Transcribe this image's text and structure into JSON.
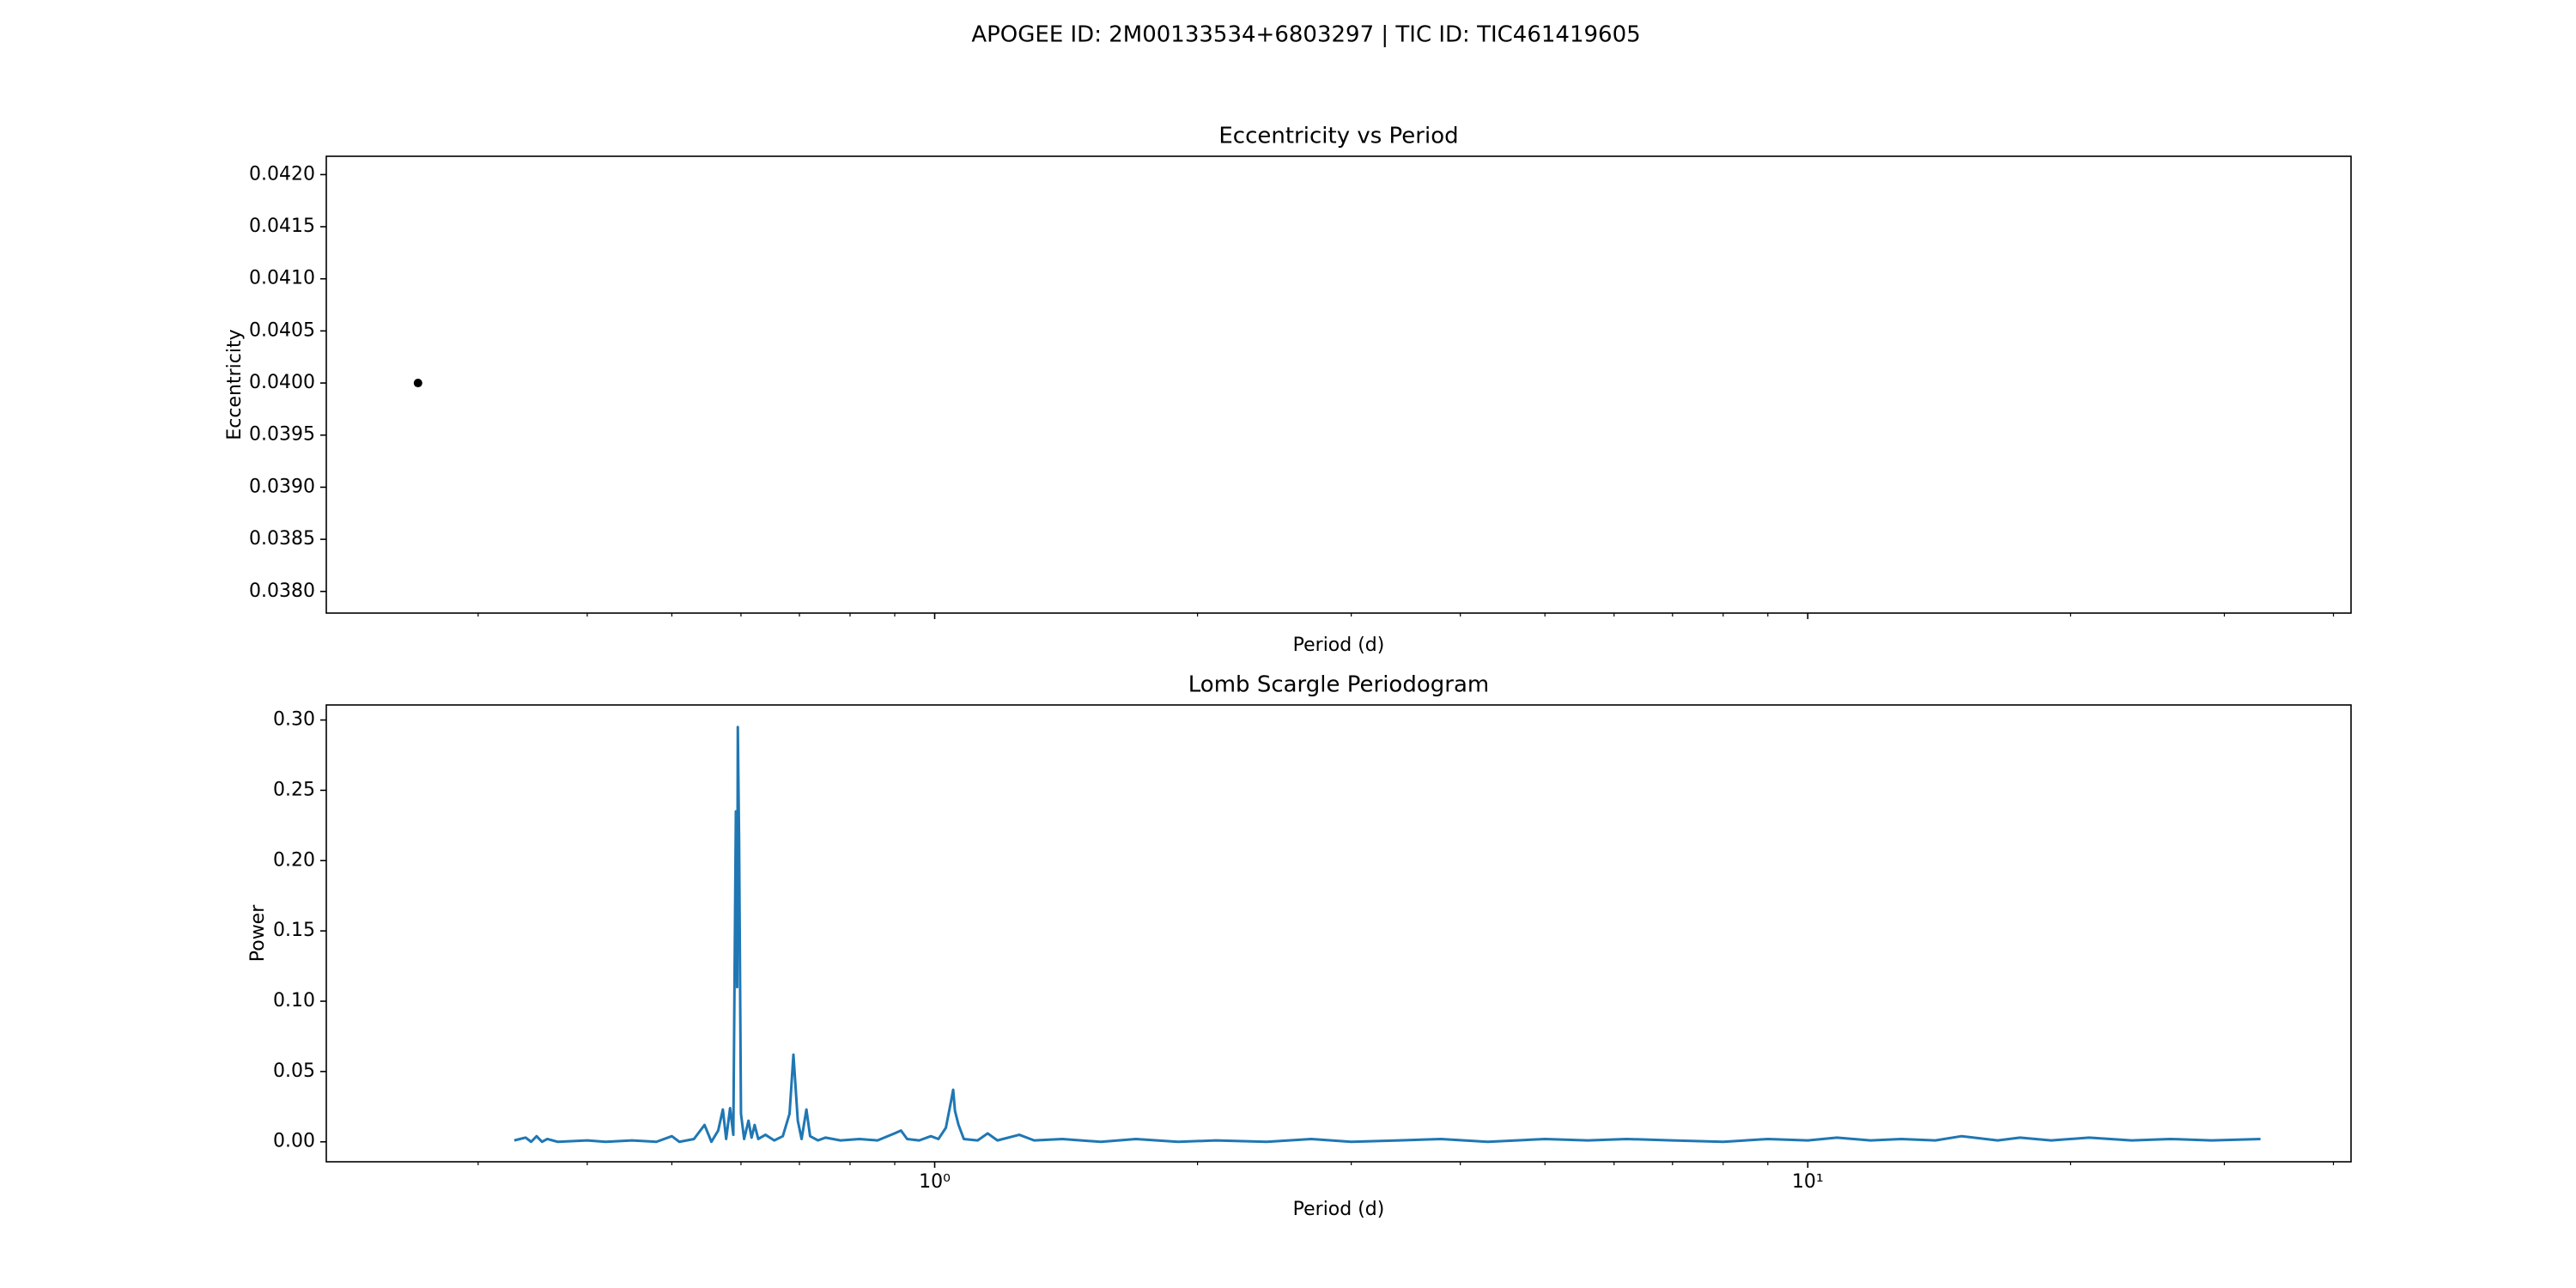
{
  "title": "APOGEE ID: 2M00133534+6803297 | TIC ID: TIC461419605",
  "chart_data": [
    {
      "type": "scatter",
      "title": "Eccentricity vs Period",
      "x_label": "Period (d)",
      "y_label": "Eccentricity",
      "x": [
        0.256
      ],
      "values": [
        0.04
      ],
      "color": "#000000",
      "xscale": "log",
      "xlim": [
        0.201,
        41.9
      ],
      "ylim": [
        0.037792,
        0.042176
      ],
      "xticks": [
        1,
        10
      ],
      "xminorticks": [
        0.3,
        0.4,
        0.5,
        0.6,
        0.7,
        0.8,
        0.9,
        2,
        3,
        4,
        5,
        6,
        7,
        8,
        9,
        20,
        30,
        40
      ],
      "yticks": [
        {
          "value": 0.038,
          "label": "0.0380"
        },
        {
          "value": 0.0385,
          "label": "0.0385"
        },
        {
          "value": 0.039,
          "label": "0.0390"
        },
        {
          "value": 0.0395,
          "label": "0.0395"
        },
        {
          "value": 0.04,
          "label": "0.0400"
        },
        {
          "value": 0.0405,
          "label": "0.0405"
        },
        {
          "value": 0.041,
          "label": "0.0410"
        },
        {
          "value": 0.0415,
          "label": "0.0415"
        },
        {
          "value": 0.042,
          "label": "0.0420"
        }
      ]
    },
    {
      "type": "line",
      "title": "Lomb Scargle Periodogram",
      "x_label": "Period (d)",
      "y_label": "Power",
      "color": "#1f77b4",
      "x": [
        0.33,
        0.34,
        0.345,
        0.35,
        0.355,
        0.36,
        0.37,
        0.4,
        0.42,
        0.45,
        0.48,
        0.5,
        0.51,
        0.53,
        0.545,
        0.555,
        0.565,
        0.572,
        0.577,
        0.583,
        0.588,
        0.592,
        0.594,
        0.595,
        0.597,
        0.6,
        0.605,
        0.612,
        0.617,
        0.622,
        0.628,
        0.64,
        0.655,
        0.67,
        0.682,
        0.689,
        0.697,
        0.704,
        0.713,
        0.72,
        0.735,
        0.75,
        0.78,
        0.82,
        0.86,
        0.9,
        0.915,
        0.93,
        0.96,
        0.99,
        1.01,
        1.03,
        1.045,
        1.05,
        1.055,
        1.065,
        1.08,
        1.12,
        1.15,
        1.18,
        1.25,
        1.3,
        1.4,
        1.55,
        1.7,
        1.9,
        2.1,
        2.4,
        2.7,
        3.0,
        3.4,
        3.8,
        4.3,
        5.0,
        5.6,
        6.2,
        7.0,
        8.0,
        9.0,
        10.0,
        10.8,
        11.8,
        12.8,
        14.0,
        15.0,
        16.5,
        17.5,
        19.0,
        21.0,
        23.5,
        26.0,
        29.0,
        33.0
      ],
      "values": [
        0.001,
        0.003,
        0.0,
        0.004,
        0.0,
        0.002,
        0.0,
        0.001,
        0.0,
        0.001,
        0.0,
        0.004,
        0.0,
        0.002,
        0.012,
        0.0,
        0.008,
        0.023,
        0.002,
        0.024,
        0.005,
        0.235,
        0.11,
        0.295,
        0.215,
        0.02,
        0.002,
        0.015,
        0.003,
        0.012,
        0.002,
        0.005,
        0.001,
        0.004,
        0.02,
        0.062,
        0.015,
        0.002,
        0.023,
        0.004,
        0.001,
        0.003,
        0.001,
        0.002,
        0.001,
        0.006,
        0.008,
        0.002,
        0.001,
        0.004,
        0.002,
        0.01,
        0.03,
        0.037,
        0.022,
        0.012,
        0.002,
        0.001,
        0.006,
        0.001,
        0.005,
        0.001,
        0.002,
        0.0,
        0.002,
        0.0,
        0.001,
        0.0,
        0.002,
        0.0,
        0.001,
        0.002,
        0.0,
        0.002,
        0.001,
        0.002,
        0.001,
        0.0,
        0.002,
        0.001,
        0.003,
        0.001,
        0.002,
        0.001,
        0.004,
        0.001,
        0.003,
        0.001,
        0.003,
        0.001,
        0.002,
        0.001,
        0.002
      ],
      "xscale": "log",
      "xlim": [
        0.201,
        41.9
      ],
      "ylim": [
        -0.0142,
        0.3107
      ],
      "xticks": [
        {
          "value": 1,
          "label": "10⁰"
        },
        {
          "value": 10,
          "label": "10¹"
        }
      ],
      "xminorticks": [
        0.3,
        0.4,
        0.5,
        0.6,
        0.7,
        0.8,
        0.9,
        2,
        3,
        4,
        5,
        6,
        7,
        8,
        9,
        20,
        30,
        40
      ],
      "yticks": [
        {
          "value": 0,
          "label": "0.00"
        },
        {
          "value": 0.05,
          "label": "0.05"
        },
        {
          "value": 0.1,
          "label": "0.10"
        },
        {
          "value": 0.15,
          "label": "0.15"
        },
        {
          "value": 0.2,
          "label": "0.20"
        },
        {
          "value": 0.25,
          "label": "0.25"
        },
        {
          "value": 0.3,
          "label": "0.30"
        }
      ]
    }
  ]
}
